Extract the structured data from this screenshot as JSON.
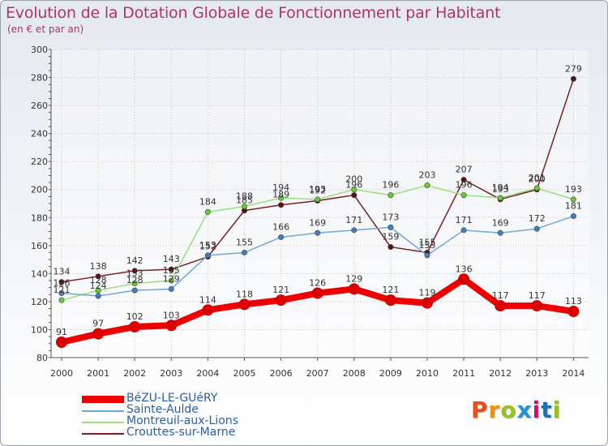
{
  "header": {
    "title": "Evolution de la Dotation Globale de Fonctionnement par Habitant",
    "subtitle": "(en € et par an)"
  },
  "brand": {
    "logo_text": "Proxiti"
  },
  "chart_data": {
    "type": "line",
    "title": "Evolution de la Dotation Globale de Fonctionnement par Habitant",
    "subtitle": "(en € et par an)",
    "xlabel": "",
    "ylabel": "",
    "ylim": [
      80,
      300
    ],
    "yticks": [
      80,
      100,
      120,
      140,
      160,
      180,
      200,
      220,
      240,
      260,
      280,
      300
    ],
    "categories": [
      "2000",
      "2001",
      "2002",
      "2003",
      "2004",
      "2005",
      "2006",
      "2007",
      "2008",
      "2009",
      "2010",
      "2011",
      "2012",
      "2013",
      "2014"
    ],
    "legend_position": "bottom-left",
    "series": [
      {
        "name": "Crouttes-sur-Marne",
        "color": "#7a1f28",
        "marker": "#5a1015",
        "values": [
          134,
          138,
          142,
          143,
          152,
          185,
          189,
          192,
          196,
          159,
          155,
          207,
          193,
          200,
          279
        ],
        "labels": [
          "134",
          "138",
          "142",
          "143",
          "152",
          "185",
          "189",
          "192",
          "196",
          "159",
          "155",
          "207",
          "193",
          "200",
          "279"
        ]
      },
      {
        "name": "Montreuil-aux-Lions",
        "color": "#99e07a",
        "marker": "#66cc33",
        "values": [
          121,
          128,
          133,
          135,
          184,
          188,
          194,
          193,
          200,
          196,
          203,
          196,
          194,
          201,
          193
        ],
        "labels": [
          "121",
          "128",
          "133",
          "135",
          "184",
          "188",
          "194",
          "193",
          "200",
          "196",
          "203",
          "196",
          "194",
          "201",
          "193"
        ]
      },
      {
        "name": "Sainte-Aulde",
        "color": "#6fa8d6",
        "marker": "#3f7fbf",
        "values": [
          126,
          124,
          128,
          129,
          153,
          155,
          166,
          169,
          171,
          173,
          153,
          171,
          169,
          172,
          181
        ],
        "labels": [
          "126",
          "124",
          "128",
          "129",
          "153",
          "155",
          "166",
          "169",
          "171",
          "173",
          "153",
          "171",
          "169",
          "172",
          "181"
        ]
      },
      {
        "name": "BéZU-LE-GUéRY",
        "color": "#ee0000",
        "marker": "#dd0000",
        "thick": true,
        "values": [
          91,
          97,
          102,
          103,
          114,
          118,
          121,
          126,
          129,
          121,
          119,
          136,
          117,
          117,
          113
        ],
        "labels": [
          "91",
          "97",
          "102",
          "103",
          "114",
          "118",
          "121",
          "126",
          "129",
          "121",
          "119",
          "136",
          "117",
          "117",
          "113"
        ]
      }
    ],
    "legend_order": [
      "BéZU-LE-GUéRY",
      "Sainte-Aulde",
      "Montreuil-aux-Lions",
      "Crouttes-sur-Marne"
    ]
  }
}
